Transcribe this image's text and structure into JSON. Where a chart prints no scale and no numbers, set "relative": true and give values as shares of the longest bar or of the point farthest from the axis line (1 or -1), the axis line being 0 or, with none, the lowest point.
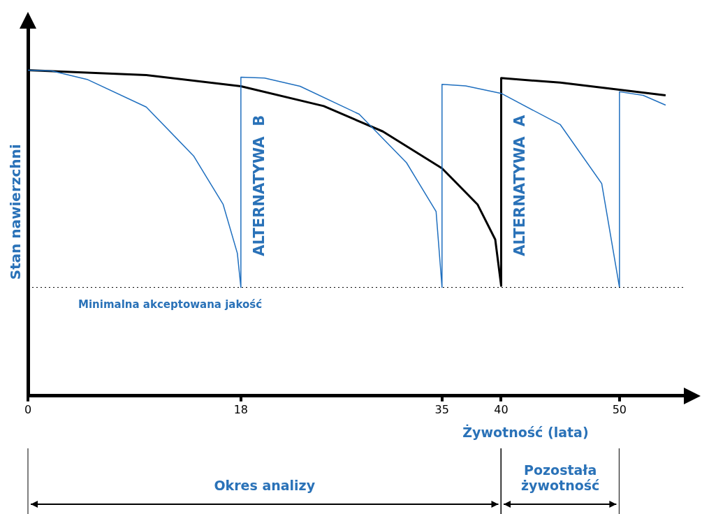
{
  "chart_data": {
    "type": "line",
    "relative": true,
    "xlabel": "Żywotność (lata)",
    "ylabel": "Stan nawierzchni",
    "xlim": [
      0,
      55.5
    ],
    "xticks": [
      0,
      18,
      35,
      40,
      50
    ],
    "grid": false,
    "legend": false,
    "marker": "none",
    "line_style": "solid",
    "series": [
      {
        "color": "#000000",
        "x": [
          0,
          10,
          18,
          25,
          30,
          35,
          38,
          39.5,
          40,
          40,
          45,
          50,
          53.9
        ],
        "values": [
          1,
          0.985,
          0.951,
          0.89,
          0.812,
          0.699,
          0.588,
          0.48,
          0.338,
          0.976,
          0.962,
          0.94,
          0.923
        ]
      },
      {
        "color": "#1f6fbf",
        "x": [
          0,
          2,
          5,
          10,
          14,
          16.5,
          17.7,
          18,
          18,
          20,
          23,
          28,
          32,
          34.5,
          35,
          35,
          37,
          40,
          45,
          48.5,
          50,
          50,
          52,
          53.9
        ],
        "values": [
          1,
          0.998,
          0.972,
          0.887,
          0.737,
          0.588,
          0.438,
          0.333,
          0.979,
          0.976,
          0.951,
          0.865,
          0.716,
          0.566,
          0.333,
          0.957,
          0.952,
          0.929,
          0.833,
          0.652,
          0.333,
          0.934,
          0.923,
          0.893
        ]
      }
    ],
    "ref_lines": [
      {
        "axis": "y",
        "value": 0.333,
        "label": "Minimalna akceptowana jakość",
        "color": "#000000",
        "line_style": "dotted"
      }
    ],
    "annotations": [
      "ALTERNATYWA  B",
      "ALTERNATYWA  A",
      "Okres analizy",
      "Pozostała żywotność"
    ]
  }
}
